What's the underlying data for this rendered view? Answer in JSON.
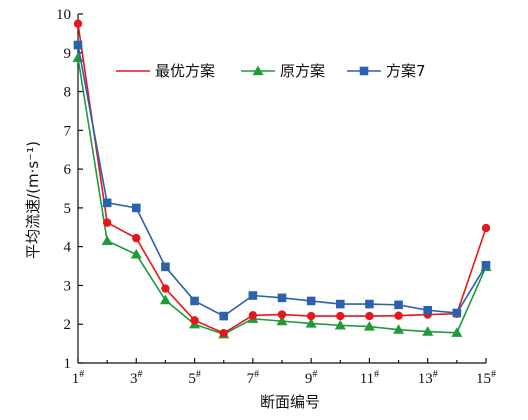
{
  "chart_data": {
    "type": "line",
    "title": "",
    "xlabel": "断面编号",
    "ylabel": "平均流速/(m·s⁻¹)",
    "ylim": [
      1,
      10
    ],
    "yticks": [
      "1",
      "2",
      "3",
      "4",
      "5",
      "6",
      "7",
      "8",
      "9",
      "10"
    ],
    "xticks": [
      "1#",
      "3#",
      "5#",
      "7#",
      "9#",
      "11#",
      "13#",
      "15#"
    ],
    "x": [
      1,
      2,
      3,
      4,
      5,
      6,
      7,
      8,
      9,
      10,
      11,
      12,
      13,
      14,
      15
    ],
    "legend_position": "upper-right",
    "series": [
      {
        "name": "最优方案",
        "color": "#e8161b",
        "marker": "circle",
        "values": [
          9.75,
          4.62,
          4.22,
          2.92,
          2.1,
          1.77,
          2.23,
          2.25,
          2.21,
          2.21,
          2.21,
          2.22,
          2.25,
          2.27,
          4.48
        ]
      },
      {
        "name": "原方案",
        "color": "#1f9a3c",
        "marker": "triangle",
        "values": [
          8.87,
          4.15,
          3.8,
          2.62,
          2.0,
          1.74,
          2.14,
          2.08,
          2.02,
          1.97,
          1.94,
          1.86,
          1.81,
          1.78,
          3.48
        ]
      },
      {
        "name": "方案7",
        "color": "#2b61ad",
        "marker": "square",
        "values": [
          9.2,
          5.13,
          5.0,
          3.48,
          2.6,
          2.21,
          2.74,
          2.68,
          2.6,
          2.52,
          2.52,
          2.5,
          2.36,
          2.29,
          3.52
        ]
      }
    ]
  }
}
